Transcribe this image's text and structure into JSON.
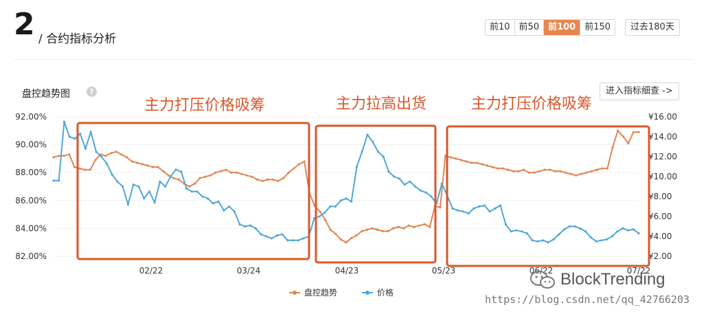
{
  "header": {
    "number": "2",
    "title": "/ 合约指标分析",
    "ranges": [
      "前10",
      "前50",
      "前100",
      "前150"
    ],
    "active_range": "前100",
    "past_label": "过去180天"
  },
  "panel": {
    "title": "盘控趋势图",
    "help_glyph": "?",
    "detail_label": "进入指标细查 ->"
  },
  "annotations": [
    {
      "label": "主力打压价格吸筹"
    },
    {
      "label": "主力拉高出货"
    },
    {
      "label": "主力打压价格吸筹"
    }
  ],
  "watermark": {
    "brand": "BlockTrending",
    "url": "https://blog.csdn.net/qq_42766203"
  },
  "colors": {
    "control": "#e08650",
    "price": "#4ea6d9",
    "annotation": "#d9572b"
  },
  "chart_data": {
    "type": "line",
    "x_ticks": [
      "02/22",
      "03/24",
      "04/23",
      "05/23",
      "06/22",
      "07/22"
    ],
    "y_left": {
      "ticks": [
        "82.00%",
        "84.00%",
        "86.00%",
        "88.00%",
        "90.00%",
        "92.00%"
      ],
      "range": [
        82,
        92
      ]
    },
    "y_right": {
      "ticks": [
        "¥2.00",
        "¥4.00",
        "¥6.00",
        "¥8.00",
        "¥10.00",
        "¥12.00",
        "¥14.00",
        "¥16.00"
      ],
      "range": [
        2,
        16
      ]
    },
    "legend_position": "bottom",
    "series": [
      {
        "name": "盘控趋势",
        "axis": "left",
        "values": [
          89.1,
          89.2,
          89.2,
          89.3,
          88.4,
          88.3,
          88.2,
          88.2,
          88.9,
          89.3,
          89.2,
          89.4,
          89.5,
          89.3,
          89.1,
          88.8,
          88.7,
          88.6,
          88.5,
          88.4,
          88.4,
          88.1,
          87.8,
          87.6,
          87.5,
          87.2,
          87.0,
          87.2,
          87.6,
          87.7,
          87.8,
          88.0,
          88.1,
          88.2,
          88.0,
          88.0,
          87.9,
          87.8,
          87.7,
          87.5,
          87.4,
          87.5,
          87.5,
          87.4,
          87.6,
          88.0,
          88.3,
          88.6,
          88.8,
          86.5,
          85.6,
          85.2,
          84.6,
          83.9,
          83.6,
          83.2,
          83.0,
          83.3,
          83.5,
          83.8,
          83.9,
          84.0,
          83.9,
          83.8,
          83.8,
          84.0,
          84.1,
          84.0,
          84.2,
          84.1,
          84.2,
          84.3,
          84.1,
          85.6,
          85.5,
          89.2,
          89.1,
          89.0,
          88.9,
          88.8,
          88.7,
          88.7,
          88.6,
          88.5,
          88.4,
          88.3,
          88.3,
          88.2,
          88.1,
          88.1,
          88.2,
          88.0,
          88.0,
          88.1,
          88.2,
          88.2,
          88.1,
          88.1,
          88.0,
          87.9,
          87.8,
          87.9,
          88.0,
          88.1,
          88.2,
          88.3,
          88.3,
          89.8,
          91.0,
          90.6,
          90.1,
          90.9,
          90.9
        ]
      },
      {
        "name": "价格",
        "axis": "right",
        "values": [
          9.6,
          9.6,
          15.5,
          14.0,
          13.8,
          14.3,
          12.8,
          14.5,
          12.5,
          12.0,
          11.3,
          10.2,
          9.5,
          9.0,
          7.2,
          9.2,
          9.0,
          7.8,
          8.5,
          7.4,
          9.5,
          9.0,
          10.0,
          10.7,
          10.5,
          8.8,
          8.5,
          8.5,
          8.0,
          7.8,
          7.3,
          7.5,
          6.6,
          7.0,
          6.5,
          5.2,
          5.0,
          5.1,
          4.8,
          4.2,
          4.0,
          3.8,
          4.1,
          4.2,
          3.6,
          3.6,
          3.6,
          3.8,
          4.0,
          5.8,
          6.0,
          6.4,
          7.0,
          7.0,
          7.6,
          7.8,
          7.5,
          11.0,
          12.5,
          14.2,
          13.5,
          12.5,
          12.0,
          10.5,
          10.0,
          9.8,
          9.2,
          9.5,
          9.0,
          8.6,
          8.4,
          8.0,
          7.3,
          9.3,
          8.1,
          6.8,
          6.6,
          6.5,
          6.3,
          6.8,
          7.0,
          7.1,
          6.5,
          6.8,
          7.1,
          5.2,
          4.5,
          4.6,
          4.5,
          4.3,
          3.6,
          3.5,
          3.6,
          3.4,
          3.7,
          4.2,
          4.7,
          5.0,
          5.0,
          4.8,
          4.5,
          3.9,
          3.5,
          3.6,
          3.7,
          4.0,
          4.5,
          4.8,
          4.6,
          4.7,
          4.3
        ]
      }
    ]
  }
}
